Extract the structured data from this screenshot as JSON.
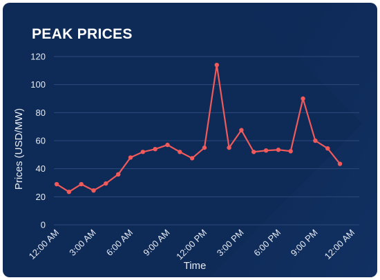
{
  "chart_data": {
    "type": "line",
    "title": "PEAK PRICES",
    "xlabel": "Time",
    "ylabel": "Prices (USD/MW)",
    "ylim": [
      0,
      120
    ],
    "yticks": [
      0,
      20,
      40,
      60,
      80,
      100,
      120
    ],
    "xtick_labels": [
      "12:00 AM",
      "3:00 AM",
      "6:00 AM",
      "9:00 AM",
      "12:00 PM",
      "3:00 PM",
      "6:00 PM",
      "9:00 PM",
      "12:00 AM"
    ],
    "grid": true,
    "series": [
      {
        "color": "#f05a5a",
        "values": [
          29,
          23.5,
          29,
          24.5,
          29.5,
          36,
          48,
          52,
          54,
          57,
          52,
          47.5,
          55,
          114,
          55,
          67.5,
          52,
          53,
          53.5,
          52.5,
          90,
          60,
          54.5,
          43.5
        ]
      }
    ]
  }
}
